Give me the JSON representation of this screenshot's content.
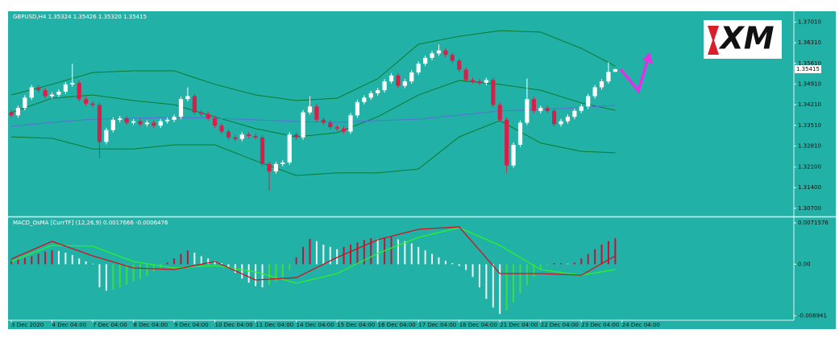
{
  "chart_data": {
    "type": "candlestick",
    "header": "GBPUSD,H4 1.35324 1.35426 1.35320 1.35415",
    "logo": "XM",
    "background": "#22b1a6",
    "bull_color": "#ffffff",
    "bear_color": "#d81f4a",
    "categories": [
      "3 Dec 2020",
      null,
      null,
      null,
      null,
      null,
      "4 Dec 04:00",
      null,
      null,
      null,
      null,
      null,
      "7 Dec 04:00",
      null,
      null,
      null,
      null,
      null,
      "8 Dec 04:00",
      null,
      null,
      null,
      null,
      null,
      "9 Dec 04:00",
      null,
      null,
      null,
      null,
      null,
      "10 Dec 04:00",
      null,
      null,
      null,
      null,
      null,
      "11 Dec 04:00",
      null,
      null,
      null,
      null,
      null,
      "14 Dec 04:00",
      null,
      null,
      null,
      null,
      null,
      "15 Dec 04:00",
      null,
      null,
      null,
      null,
      null,
      "16 Dec 04:00",
      null,
      null,
      null,
      null,
      null,
      "17 Dec 04:00",
      null,
      null,
      null,
      null,
      null,
      "18 Dec 04:00",
      null,
      null,
      null,
      null,
      null,
      "21 Dec 04:00",
      null,
      null,
      null,
      null,
      null,
      "22 Dec 04:00",
      null,
      null,
      null,
      null,
      null,
      "23 Dec 04:00",
      null,
      null,
      null,
      null,
      null,
      "24 Dec 04:00"
    ],
    "open": [
      1.3395,
      1.3385,
      1.341,
      1.3445,
      1.348,
      1.347,
      1.345,
      1.3455,
      1.3465,
      1.349,
      1.3495,
      1.344,
      1.3425,
      1.342,
      1.3295,
      1.3335,
      1.337,
      1.3375,
      1.336,
      1.3365,
      1.3355,
      1.336,
      1.335,
      1.3365,
      1.337,
      1.338,
      1.344,
      1.345,
      1.3395,
      1.339,
      1.3375,
      1.335,
      1.333,
      1.331,
      1.3305,
      1.332,
      1.3315,
      1.331,
      1.322,
      1.3195,
      1.322,
      1.3225,
      1.332,
      1.331,
      1.3395,
      1.3415,
      1.337,
      1.336,
      1.3345,
      1.334,
      1.333,
      1.3385,
      1.343,
      1.3445,
      1.346,
      1.347,
      1.35,
      1.352,
      1.3485,
      1.35,
      1.353,
      1.356,
      1.358,
      1.3595,
      1.3605,
      1.359,
      1.357,
      1.354,
      1.3505,
      1.35,
      1.3495,
      1.3505,
      1.342,
      1.337,
      1.3215,
      1.3285,
      1.336,
      1.344,
      1.34,
      1.341,
      1.34,
      1.3355,
      1.3365,
      1.338,
      1.34,
      1.3415,
      1.345,
      1.348,
      1.35,
      1.35324,
      null
    ],
    "high": [
      1.3403,
      1.3418,
      1.3453,
      1.3488,
      1.3488,
      1.3478,
      1.3463,
      1.3473,
      1.3498,
      1.356,
      1.3503,
      1.3448,
      1.3433,
      1.3428,
      1.3343,
      1.3378,
      1.3383,
      1.3383,
      1.3373,
      1.3373,
      1.3368,
      1.3368,
      1.3373,
      1.3378,
      1.3388,
      1.3448,
      1.348,
      1.3458,
      1.3403,
      1.3398,
      1.3383,
      1.3358,
      1.3338,
      1.3318,
      1.3328,
      1.3328,
      1.3323,
      1.3318,
      1.3228,
      1.3228,
      1.3233,
      1.3328,
      1.3328,
      1.3403,
      1.345,
      1.3423,
      1.3378,
      1.3368,
      1.3353,
      1.3348,
      1.3393,
      1.3438,
      1.3453,
      1.3468,
      1.3478,
      1.3508,
      1.3528,
      1.3528,
      1.3508,
      1.3538,
      1.3568,
      1.3588,
      1.3603,
      1.3625,
      1.3613,
      1.3598,
      1.3578,
      1.3548,
      1.3513,
      1.3508,
      1.3513,
      1.3513,
      1.3428,
      1.3378,
      1.3293,
      1.3368,
      1.351,
      1.3448,
      1.3418,
      1.3418,
      1.3408,
      1.3373,
      1.3388,
      1.3408,
      1.3423,
      1.3458,
      1.3488,
      1.3508,
      1.3565,
      1.35426,
      null
    ],
    "low": [
      1.3377,
      1.3377,
      1.3402,
      1.3437,
      1.3462,
      1.3442,
      1.3442,
      1.3447,
      1.3457,
      1.3482,
      1.3432,
      1.3417,
      1.3412,
      1.324,
      1.3287,
      1.3327,
      1.3362,
      1.3352,
      1.3352,
      1.3347,
      1.3347,
      1.3342,
      1.3342,
      1.3357,
      1.3362,
      1.3372,
      1.3432,
      1.3387,
      1.3382,
      1.3367,
      1.3342,
      1.3322,
      1.3302,
      1.3297,
      1.3297,
      1.3307,
      1.3302,
      1.3212,
      1.313,
      1.3187,
      1.3212,
      1.3217,
      1.3302,
      1.3302,
      1.3387,
      1.3362,
      1.3352,
      1.3337,
      1.3332,
      1.3322,
      1.3322,
      1.3377,
      1.3422,
      1.3437,
      1.3452,
      1.3462,
      1.3492,
      1.3477,
      1.3477,
      1.3492,
      1.3522,
      1.3552,
      1.3572,
      1.3587,
      1.3582,
      1.3562,
      1.3532,
      1.3497,
      1.3492,
      1.3487,
      1.3487,
      1.3412,
      1.3362,
      1.319,
      1.3207,
      1.3277,
      1.3352,
      1.3392,
      1.3392,
      1.3392,
      1.3347,
      1.3347,
      1.3357,
      1.3372,
      1.3392,
      1.3407,
      1.3442,
      1.3472,
      1.3492,
      1.3532,
      null
    ],
    "close": [
      1.3385,
      1.341,
      1.3445,
      1.348,
      1.347,
      1.345,
      1.3455,
      1.3465,
      1.349,
      1.3495,
      1.344,
      1.3425,
      1.342,
      1.3295,
      1.3335,
      1.337,
      1.3375,
      1.336,
      1.3365,
      1.3355,
      1.336,
      1.335,
      1.3365,
      1.337,
      1.338,
      1.344,
      1.345,
      1.3395,
      1.339,
      1.3375,
      1.335,
      1.333,
      1.331,
      1.3305,
      1.332,
      1.3315,
      1.331,
      1.322,
      1.3195,
      1.322,
      1.3225,
      1.332,
      1.331,
      1.3395,
      1.3415,
      1.337,
      1.336,
      1.3345,
      1.334,
      1.333,
      1.3385,
      1.343,
      1.3445,
      1.346,
      1.347,
      1.35,
      1.352,
      1.3485,
      1.35,
      1.353,
      1.356,
      1.358,
      1.3595,
      1.3605,
      1.359,
      1.357,
      1.354,
      1.3505,
      1.35,
      1.3495,
      1.3505,
      1.342,
      1.337,
      1.3215,
      1.3285,
      1.336,
      1.344,
      1.34,
      1.341,
      1.34,
      1.3355,
      1.3365,
      1.338,
      1.34,
      1.3415,
      1.345,
      1.348,
      1.35,
      1.3532,
      1.35415,
      null
    ],
    "ylim": [
      1.3045,
      1.3735
    ],
    "yticks": [
      {
        "value": 1.3701,
        "label": "1.37010"
      },
      {
        "value": 1.3631,
        "label": "1.36310"
      },
      {
        "value": 1.3561,
        "label": "1.35610"
      },
      {
        "value": 1.3491,
        "label": "1.34910"
      },
      {
        "value": 1.3421,
        "label": "1.34210"
      },
      {
        "value": 1.3351,
        "label": "1.33510"
      },
      {
        "value": 1.3281,
        "label": "1.32810"
      },
      {
        "value": 1.321,
        "label": "1.32100"
      },
      {
        "value": 1.314,
        "label": "1.31400"
      },
      {
        "value": 1.307,
        "label": "1.30700"
      }
    ],
    "bands": {
      "x": [
        0,
        6,
        12,
        18,
        24,
        30,
        36,
        42,
        48,
        54,
        60,
        66,
        72,
        78,
        84,
        89
      ],
      "band_color": "#0b7a2e",
      "ma_color": "#5a6fd6",
      "upper": [
        1.3454,
        1.349,
        1.353,
        1.3536,
        1.3536,
        1.349,
        1.3454,
        1.3435,
        1.3443,
        1.3509,
        1.3626,
        1.3653,
        1.3672,
        1.3667,
        1.3612,
        1.3552
      ],
      "middle": [
        1.3394,
        1.3443,
        1.3454,
        1.3435,
        1.3421,
        1.338,
        1.334,
        1.3312,
        1.3326,
        1.338,
        1.3454,
        1.3503,
        1.349,
        1.347,
        1.3427,
        1.3402
      ],
      "lower": [
        1.3312,
        1.3307,
        1.3271,
        1.3271,
        1.3285,
        1.3285,
        1.3231,
        1.3181,
        1.319,
        1.319,
        1.3203,
        1.3312,
        1.3367,
        1.3291,
        1.3263,
        1.3258
      ],
      "ma": [
        1.3348,
        1.3361,
        1.3372,
        1.3375,
        1.3378,
        1.3375,
        1.337,
        1.3364,
        1.3361,
        1.3367,
        1.3372,
        1.3386,
        1.34,
        1.3405,
        1.3411,
        1.3419
      ]
    },
    "macd": {
      "header": "MACD_OsMA [CurrTF] (12,26,9) 0.0017666 -0.0006476",
      "ylim": [
        -0.0097,
        0.008
      ],
      "yticks": [
        0.0071576,
        {
          "value": 0,
          "label": "0.00"
        },
        -0.008941
      ],
      "hist_colors": {
        "rising_positive": "#c0143c",
        "falling": "#f2f2f2",
        "rising_negative": "#3fdc3f"
      },
      "main_color": "#d4101e",
      "signal_color": "#2cf02c",
      "histogram": [
        0.0007,
        0.0009,
        0.0011,
        0.0014,
        0.0018,
        0.0022,
        0.0024,
        0.0023,
        0.002,
        0.0016,
        0.001,
        0.0005,
        0.0001,
        -0.004,
        -0.0046,
        -0.0044,
        -0.004,
        -0.0035,
        -0.003,
        -0.0025,
        -0.002,
        -0.0012,
        -0.0006,
        0.0003,
        0.001,
        0.0018,
        0.0024,
        0.002,
        0.0014,
        0.001,
        0.0006,
        0.0002,
        -0.0005,
        -0.0015,
        -0.0025,
        -0.0032,
        -0.0038,
        -0.004,
        -0.0036,
        -0.003,
        -0.0022,
        -0.001,
        0.0012,
        0.003,
        0.0044,
        0.004,
        0.0034,
        0.003,
        0.0026,
        0.003,
        0.0034,
        0.0038,
        0.0042,
        0.0045,
        0.0044,
        0.0046,
        0.0047,
        0.0043,
        0.004,
        0.0036,
        0.003,
        0.0024,
        0.0018,
        0.0012,
        0.0006,
        0.0002,
        -0.0003,
        -0.001,
        -0.0022,
        -0.004,
        -0.006,
        -0.0075,
        -0.0086,
        -0.008,
        -0.0066,
        -0.005,
        -0.0036,
        -0.0022,
        -0.001,
        -0.0002,
        0.0002,
        0.0002,
        0.0001,
        0.0003,
        0.001,
        0.0018,
        0.0026,
        0.0034,
        0.004,
        0.0045,
        null
      ],
      "x": [
        0,
        6,
        12,
        18,
        24,
        30,
        36,
        42,
        48,
        54,
        60,
        66,
        72,
        78,
        84,
        89
      ],
      "main": [
        0.00089,
        0.00396,
        0.00145,
        -0.00064,
        -0.00092,
        0.00047,
        -0.00273,
        -0.00232,
        0.00117,
        0.00424,
        0.00605,
        0.00647,
        -0.00162,
        -0.00162,
        -0.0019,
        0.00145
      ],
      "signal": [
        0.00047,
        0.00326,
        0.00312,
        0.00047,
        -0.00064,
        -0.00022,
        -0.00134,
        -0.00329,
        -0.00162,
        0.00187,
        0.00465,
        0.00633,
        0.00326,
        -0.00092,
        -0.0019,
        -0.00092
      ]
    }
  }
}
